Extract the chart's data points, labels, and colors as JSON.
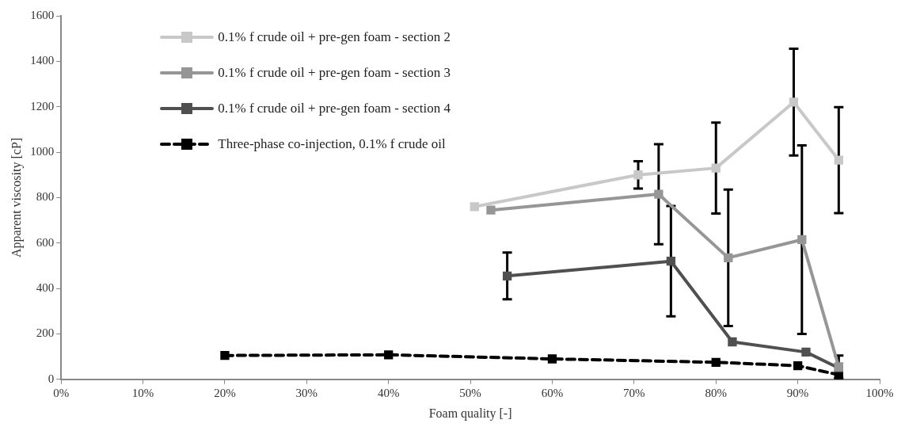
{
  "chart_data": {
    "type": "line",
    "xlabel": "Foam quality [-]",
    "ylabel": "Apparent viscosity [cP]",
    "xlim": [
      0,
      100
    ],
    "xticks": [
      {
        "value": 0,
        "label": "0%"
      },
      {
        "value": 10,
        "label": "10%"
      },
      {
        "value": 20,
        "label": "20%"
      },
      {
        "value": 30,
        "label": "30%"
      },
      {
        "value": 40,
        "label": "40%"
      },
      {
        "value": 50,
        "label": "50%"
      },
      {
        "value": 60,
        "label": "60%"
      },
      {
        "value": 70,
        "label": "70%"
      },
      {
        "value": 80,
        "label": "80%"
      },
      {
        "value": 90,
        "label": "90%"
      },
      {
        "value": 100,
        "label": "100%"
      }
    ],
    "ylim": [
      0,
      1600
    ],
    "yticks": [
      0,
      200,
      400,
      600,
      800,
      1000,
      1200,
      1400,
      1600
    ],
    "grid": false,
    "legend": "top left",
    "marker": "square",
    "series": [
      {
        "name": "0.1% f crude oil + pre-gen foam - section 2",
        "color": "#c8c8c8",
        "line_style": "solid",
        "x": [
          50.5,
          70.5,
          80,
          89.5,
          95
        ],
        "values": [
          760,
          900,
          930,
          1220,
          965
        ],
        "errors": [
          null,
          60,
          200,
          235,
          233
        ]
      },
      {
        "name": "0.1% f crude oil + pre-gen foam - section 3",
        "color": "#969696",
        "line_style": "solid",
        "x": [
          52.5,
          73,
          81.5,
          90.5,
          95
        ],
        "values": [
          745,
          815,
          535,
          615,
          55
        ],
        "errors": [
          null,
          220,
          300,
          415,
          50
        ]
      },
      {
        "name": "0.1% f crude oil + pre-gen foam - section 4",
        "color": "#505050",
        "line_style": "solid",
        "x": [
          54.5,
          74.5,
          82,
          91,
          95
        ],
        "values": [
          455,
          520,
          165,
          120,
          50
        ],
        "errors": [
          103,
          243,
          null,
          null,
          null
        ]
      },
      {
        "name": "Three-phase co-injection, 0.1% f crude oil",
        "color": "#000000",
        "line_style": "dashed",
        "x": [
          20,
          40,
          60,
          80,
          90,
          95
        ],
        "values": [
          105,
          108,
          90,
          75,
          60,
          20
        ]
      }
    ]
  }
}
